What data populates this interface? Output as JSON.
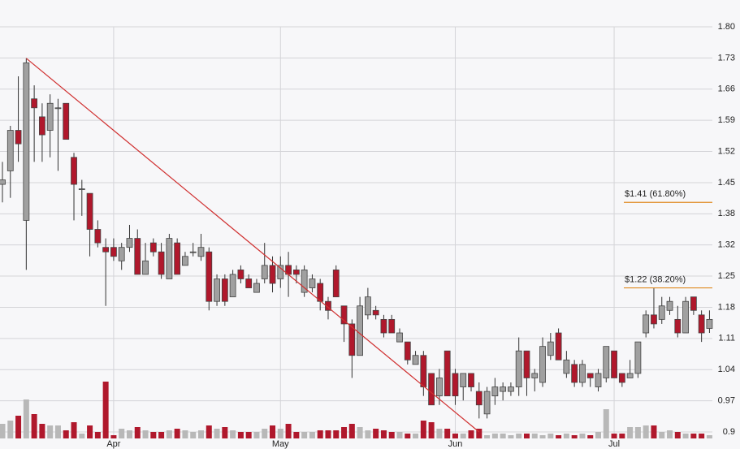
{
  "chart_data": {
    "type": "candlestick",
    "categories": [
      null,
      null,
      null,
      null,
      null,
      null,
      null,
      null,
      null,
      null,
      null,
      null,
      null,
      null,
      "Apr",
      null,
      null,
      null,
      null,
      null,
      null,
      null,
      null,
      null,
      null,
      null,
      null,
      null,
      null,
      null,
      null,
      null,
      null,
      null,
      null,
      "May",
      null,
      null,
      null,
      null,
      null,
      null,
      null,
      null,
      null,
      null,
      null,
      null,
      null,
      null,
      null,
      null,
      null,
      null,
      null,
      null,
      null,
      "Jun",
      null,
      null,
      null,
      null,
      null,
      null,
      null,
      null,
      null,
      null,
      null,
      null,
      null,
      null,
      null,
      null,
      null,
      null,
      null,
      "Jul",
      null,
      null,
      null,
      null,
      null,
      null,
      null,
      null,
      null,
      null,
      null,
      null
    ],
    "open": [
      1.45,
      1.48,
      1.57,
      1.37,
      1.64,
      1.6,
      1.57,
      1.62,
      1.63,
      1.51,
      1.44,
      1.43,
      1.35,
      1.31,
      1.31,
      1.28,
      1.31,
      1.33,
      1.25,
      1.32,
      1.3,
      1.24,
      1.32,
      1.27,
      1.3,
      1.29,
      1.3,
      1.19,
      1.24,
      1.2,
      1.26,
      1.24,
      1.21,
      1.24,
      1.27,
      1.24,
      1.27,
      1.26,
      1.21,
      1.22,
      1.23,
      1.19,
      1.26,
      1.18,
      1.14,
      1.07,
      1.16,
      1.17,
      1.15,
      1.15,
      1.1,
      1.1,
      1.05,
      1.07,
      1.03,
      0.98,
      1.08,
      1.03,
      1.0,
      1.03,
      0.99,
      0.94,
      0.98,
      0.99,
      0.99,
      1.0,
      1.08,
      1.02,
      1.01,
      1.07,
      1.12,
      1.03,
      1.05,
      1.01,
      1.03,
      1.0,
      1.02,
      1.08,
      1.03,
      1.02,
      1.03,
      1.12,
      1.16,
      1.15,
      1.17,
      1.15,
      1.12,
      1.2,
      1.16,
      1.13
    ],
    "high": [
      1.5,
      1.58,
      1.69,
      1.73,
      1.67,
      1.63,
      1.65,
      1.64,
      1.63,
      1.52,
      1.46,
      1.43,
      1.37,
      1.33,
      1.33,
      1.32,
      1.36,
      1.35,
      1.32,
      1.33,
      1.32,
      1.34,
      1.33,
      1.3,
      1.32,
      1.34,
      1.31,
      1.25,
      1.25,
      1.26,
      1.27,
      1.25,
      1.24,
      1.32,
      1.29,
      1.29,
      1.3,
      1.27,
      1.27,
      1.25,
      1.24,
      1.2,
      1.27,
      1.18,
      1.15,
      1.2,
      1.22,
      1.18,
      1.16,
      1.16,
      1.13,
      1.1,
      1.08,
      1.08,
      1.03,
      1.04,
      1.08,
      1.04,
      1.03,
      1.03,
      1.01,
      1.0,
      1.02,
      1.01,
      1.01,
      1.11,
      1.08,
      1.04,
      1.11,
      1.12,
      1.13,
      1.08,
      1.06,
      1.06,
      1.03,
      1.04,
      1.09,
      1.08,
      1.03,
      1.06,
      1.1,
      1.17,
      1.22,
      1.2,
      1.2,
      1.18,
      1.2,
      1.2,
      1.17,
      1.17
    ],
    "low": [
      1.41,
      1.42,
      1.5,
      1.26,
      1.5,
      1.5,
      1.51,
      1.48,
      1.55,
      1.37,
      1.38,
      1.29,
      1.31,
      1.18,
      1.28,
      1.26,
      1.3,
      1.25,
      1.25,
      1.29,
      1.24,
      1.24,
      1.25,
      1.27,
      1.29,
      1.28,
      1.17,
      1.18,
      1.18,
      1.2,
      1.23,
      1.22,
      1.21,
      1.23,
      1.21,
      1.22,
      1.2,
      1.23,
      1.2,
      1.21,
      1.17,
      1.15,
      1.2,
      1.1,
      1.02,
      1.07,
      1.15,
      1.15,
      1.11,
      1.12,
      1.1,
      1.05,
      1.05,
      0.98,
      0.96,
      0.96,
      0.98,
      0.96,
      0.97,
      0.99,
      0.93,
      0.93,
      0.96,
      0.97,
      0.98,
      0.98,
      0.98,
      0.99,
      1.0,
      1.06,
      1.06,
      1.02,
      1.0,
      1.0,
      1.0,
      0.99,
      1.01,
      1.02,
      1.0,
      1.02,
      1.02,
      1.11,
      1.13,
      1.14,
      1.16,
      1.11,
      1.12,
      1.16,
      1.1,
      1.12
    ],
    "close": [
      1.46,
      1.57,
      1.54,
      1.72,
      1.62,
      1.56,
      1.63,
      1.62,
      1.55,
      1.45,
      1.44,
      1.35,
      1.32,
      1.3,
      1.29,
      1.31,
      1.33,
      1.25,
      1.28,
      1.3,
      1.25,
      1.33,
      1.25,
      1.29,
      1.3,
      1.31,
      1.19,
      1.24,
      1.19,
      1.25,
      1.24,
      1.22,
      1.23,
      1.27,
      1.23,
      1.27,
      1.25,
      1.25,
      1.26,
      1.24,
      1.19,
      1.17,
      1.2,
      1.14,
      1.07,
      1.18,
      1.2,
      1.16,
      1.12,
      1.12,
      1.12,
      1.06,
      1.07,
      1.0,
      0.96,
      1.02,
      0.98,
      0.98,
      1.03,
      1.0,
      0.96,
      0.99,
      1.0,
      1.0,
      1.0,
      1.08,
      1.02,
      1.03,
      1.09,
      1.1,
      1.06,
      1.06,
      1.01,
      1.05,
      1.02,
      1.03,
      1.09,
      1.02,
      1.01,
      1.03,
      1.1,
      1.16,
      1.14,
      1.18,
      1.19,
      1.12,
      1.19,
      1.17,
      1.12,
      1.15
    ],
    "volume": [
      18,
      22,
      28,
      48,
      30,
      18,
      16,
      16,
      10,
      20,
      6,
      16,
      8,
      70,
      4,
      12,
      10,
      14,
      10,
      8,
      8,
      10,
      12,
      10,
      8,
      10,
      16,
      12,
      14,
      10,
      8,
      8,
      8,
      12,
      16,
      12,
      18,
      8,
      8,
      8,
      10,
      10,
      10,
      14,
      18,
      14,
      10,
      12,
      10,
      8,
      8,
      6,
      6,
      22,
      20,
      12,
      12,
      6,
      6,
      10,
      12,
      4,
      6,
      6,
      4,
      6,
      6,
      6,
      4,
      6,
      4,
      6,
      4,
      6,
      4,
      8,
      36,
      6,
      6,
      14,
      14,
      16,
      16,
      8,
      10,
      8,
      6,
      6,
      6,
      4
    ],
    "up_color": "#a0a0a0",
    "down_color": "#b0182c",
    "ylim": [
      0.9,
      1.8
    ],
    "yticks": [
      0.9,
      {
        "value": 0.9692,
        "label": "0.97"
      },
      {
        "value": 1.0385,
        "label": "1.04"
      },
      {
        "value": 1.1077,
        "label": "1.11"
      },
      {
        "value": 1.1769,
        "label": "1.18"
      },
      {
        "value": 1.2462,
        "label": "1.25"
      },
      {
        "value": 1.3154,
        "label": "1.32"
      },
      {
        "value": 1.3846,
        "label": "1.38"
      },
      {
        "value": 1.4538,
        "label": "1.45"
      },
      {
        "value": 1.5231,
        "label": "1.52"
      },
      {
        "value": 1.5923,
        "label": "1.59"
      },
      {
        "value": 1.6615,
        "label": "1.66"
      },
      {
        "value": 1.7308,
        "label": "1.73"
      },
      {
        "value": 1.8,
        "label": "1.80"
      }
    ],
    "grid": true,
    "trendline": {
      "from": {
        "index": 3,
        "value": 1.73
      },
      "to": {
        "index": 60,
        "value": 0.9
      },
      "color": "#d03030"
    },
    "levels": [
      {
        "value": 1.41,
        "label": "$1.41 (61.80%)"
      },
      {
        "value": 1.22,
        "label": "$1.22 (38.20%)"
      }
    ],
    "level_color": "#e08a20"
  }
}
